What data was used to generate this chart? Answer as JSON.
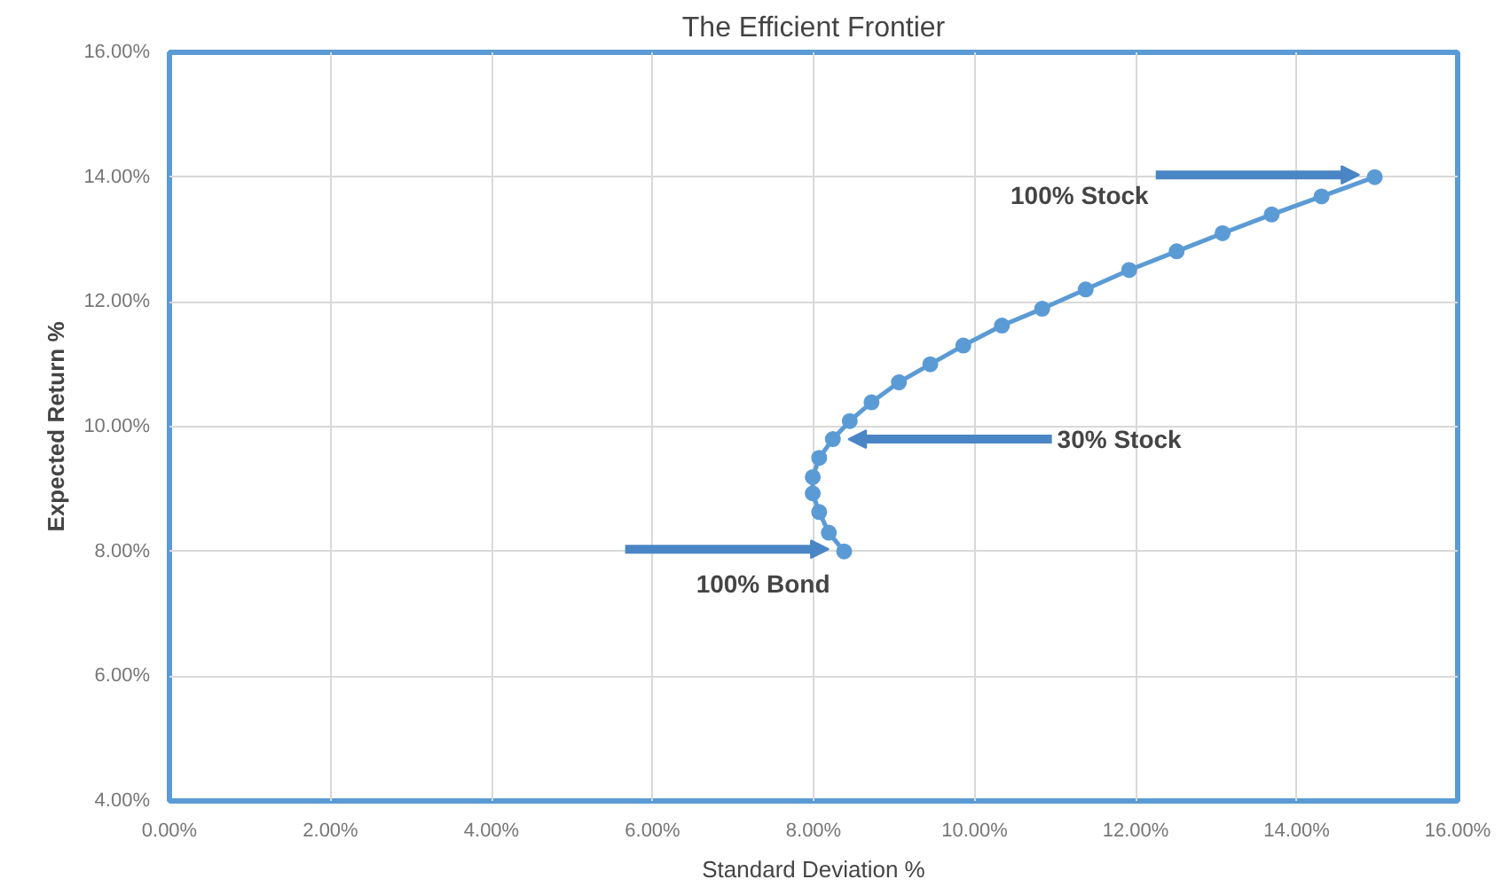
{
  "chart_data": {
    "type": "line",
    "title": "The Efficient Frontier",
    "xlabel": "Standard Deviation %",
    "ylabel": "Expected Return %",
    "x": [
      8.38,
      8.19,
      8.07,
      7.99,
      7.99,
      8.07,
      8.24,
      8.45,
      8.72,
      9.06,
      9.45,
      9.86,
      10.34,
      10.84,
      11.38,
      11.92,
      12.51,
      13.08,
      13.69,
      14.31,
      14.97
    ],
    "series": [
      {
        "color": "#5b9bd5",
        "values": [
          8.0,
          8.3,
          8.63,
          8.93,
          9.19,
          9.5,
          9.8,
          10.09,
          10.39,
          10.71,
          11.0,
          11.3,
          11.62,
          11.89,
          12.2,
          12.51,
          12.81,
          13.1,
          13.4,
          13.69,
          14.0
        ]
      }
    ],
    "xlim": [
      0,
      16
    ],
    "ylim": [
      4,
      16
    ],
    "xticks": [
      {
        "value": 0,
        "label": "0.00%"
      },
      {
        "value": 2,
        "label": "2.00%"
      },
      {
        "value": 4,
        "label": "4.00%"
      },
      {
        "value": 6,
        "label": "6.00%"
      },
      {
        "value": 8,
        "label": "8.00%"
      },
      {
        "value": 10,
        "label": "10.00%"
      },
      {
        "value": 12,
        "label": "12.00%"
      },
      {
        "value": 14,
        "label": "14.00%"
      },
      {
        "value": 16,
        "label": "16.00%"
      }
    ],
    "yticks": [
      {
        "value": 4,
        "label": "4.00%"
      },
      {
        "value": 6,
        "label": "6.00%"
      },
      {
        "value": 8,
        "label": "8.00%"
      },
      {
        "value": 10,
        "label": "10.00%"
      },
      {
        "value": 12,
        "label": "12.00%"
      },
      {
        "value": 14,
        "label": "14.00%"
      },
      {
        "value": 16,
        "label": "16.00%"
      }
    ],
    "grid": true,
    "marker": "circle",
    "line_style": "solid",
    "annotations": [
      {
        "text": "100% Stock",
        "x": 14.97,
        "y": 14.0
      },
      {
        "text": "30% Stock",
        "x": 8.24,
        "y": 9.8
      },
      {
        "text": "100% Bond",
        "x": 8.38,
        "y": 8.0
      }
    ]
  }
}
